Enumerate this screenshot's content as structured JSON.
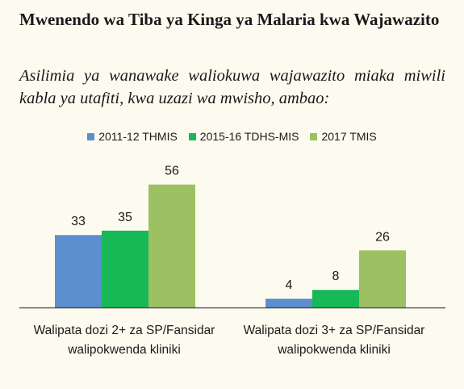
{
  "title": "Mwenendo wa Tiba ya Kinga ya Malaria kwa Wajawazito",
  "subtitle": "Asilimia ya wanawake waliokuwa wajawazito miaka miwili kabla ya utafiti, kwa uzazi wa mwisho, ambao:",
  "colors": {
    "series1": "#5b8fd0",
    "series2": "#17b856",
    "series3": "#9cc163",
    "axis": "#3d3d3d"
  },
  "chart_data": {
    "type": "bar",
    "categories": [
      "Walipata dozi 2+ za SP/Fansidar walipokwenda kliniki",
      "Walipata dozi 3+ za SP/Fansidar walipokwenda kliniki"
    ],
    "series": [
      {
        "name": "2011-12 THMIS",
        "values": [
          33,
          4
        ]
      },
      {
        "name": "2015-16 TDHS-MIS",
        "values": [
          35,
          8
        ]
      },
      {
        "name": "2017 TMIS",
        "values": [
          56,
          26
        ]
      }
    ],
    "ylim": [
      0,
      60
    ],
    "legend": "top",
    "grid": false
  }
}
